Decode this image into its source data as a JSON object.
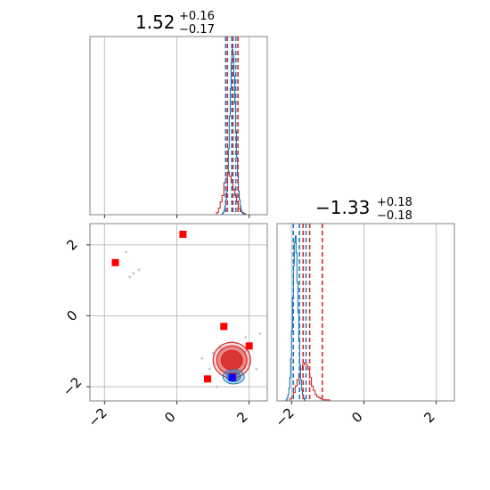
{
  "chart_data": {
    "type": "scatter",
    "title": "",
    "params": [
      {
        "median": "1.52",
        "plus": "+0.16",
        "minus": "−0.17"
      },
      {
        "median": "−1.33",
        "plus": "+0.18",
        "minus": "−0.18"
      }
    ],
    "axes": {
      "x0": {
        "range": [
          -2.4,
          2.5
        ],
        "ticks": [
          -2,
          0,
          2
        ],
        "tick_labels": [
          "−2",
          "0",
          "2"
        ]
      },
      "x1": {
        "range": [
          -2.4,
          2.5
        ],
        "ticks": [
          -2,
          0,
          2
        ],
        "tick_labels": [
          "−2",
          "0",
          "2"
        ]
      },
      "y_scatter": {
        "range": [
          -2.4,
          2.6
        ],
        "ticks": [
          -2,
          0,
          2
        ],
        "tick_labels": [
          "−2",
          "0",
          "2"
        ]
      }
    },
    "colors": {
      "blue": "#1f77b4",
      "red": "#d62728",
      "marker_red": "#ff0000",
      "marker_blue": "#0000ff",
      "grid": "#b0b0b0"
    },
    "hist_x0": {
      "blue": {
        "edges_start": 1.25,
        "bin_width": 0.025,
        "counts": [
          1,
          2,
          4,
          8,
          14,
          22,
          38,
          62,
          92,
          118,
          142,
          155,
          150,
          130,
          104,
          78,
          54,
          36,
          22,
          14,
          8,
          4,
          2,
          1
        ]
      },
      "red": {
        "edges_start": 1.1,
        "bin_width": 0.05,
        "counts": [
          2,
          6,
          12,
          18,
          30,
          34,
          40,
          36,
          30,
          24,
          18,
          12,
          6,
          3,
          2,
          1
        ]
      },
      "blue_lines": [
        1.35,
        1.52,
        1.63
      ],
      "red_lines": [
        1.4,
        1.55,
        1.69
      ]
    },
    "hist_x1": {
      "blue": {
        "edges_start": -2.15,
        "bin_width": 0.025,
        "counts": [
          1,
          3,
          6,
          12,
          22,
          40,
          66,
          98,
          128,
          150,
          156,
          140,
          112,
          84,
          56,
          34,
          20,
          10,
          6,
          3,
          1
        ]
      },
      "red": {
        "edges_start": -2.05,
        "bin_width": 0.05,
        "counts": [
          2,
          4,
          8,
          14,
          20,
          26,
          30,
          34,
          36,
          34,
          30,
          22,
          14,
          10,
          6,
          4,
          3,
          2,
          1,
          1,
          1,
          1
        ]
      },
      "blue_lines": [
        -1.95,
        -1.78,
        -1.6
      ],
      "red_lines": [
        -1.68,
        -1.5,
        -1.15
      ]
    },
    "scatter": {
      "red_markers": [
        {
          "x": -1.7,
          "y": 1.5
        },
        {
          "x": 0.17,
          "y": 2.3
        },
        {
          "x": 1.3,
          "y": -0.3
        },
        {
          "x": 2.0,
          "y": -0.85
        },
        {
          "x": 0.85,
          "y": -1.78
        },
        {
          "x": 1.55,
          "y": -1.72
        }
      ],
      "blue_marker": {
        "x": 1.53,
        "y": -1.74
      },
      "red_contour_center": {
        "x": 1.52,
        "y": -1.25
      },
      "blue_contour_center": {
        "x": 1.57,
        "y": -1.72
      }
    }
  }
}
